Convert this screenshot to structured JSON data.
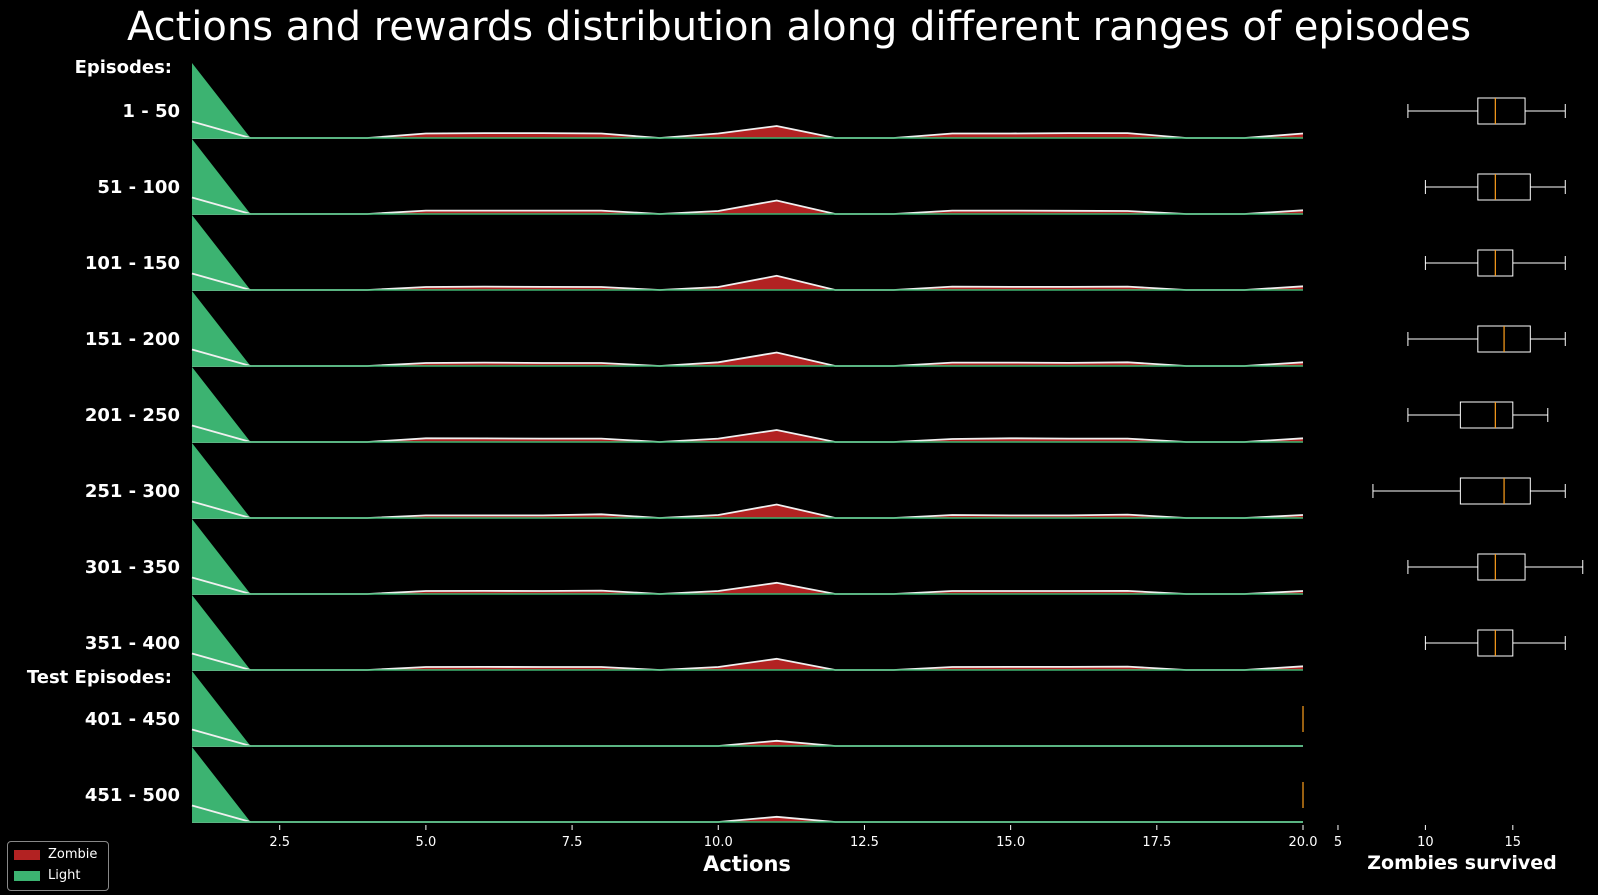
{
  "chart_data": {
    "type": "area",
    "title": "Actions and rewards distribution along different ranges of episodes",
    "group_labels": [
      "Episodes:",
      "Test Episodes:"
    ],
    "xlabel": "Actions",
    "xlim": [
      1,
      20
    ],
    "xticks": [
      "2.5",
      "5.0",
      "7.5",
      "10.0",
      "12.5",
      "15.0",
      "17.5",
      "20.0"
    ],
    "xtick_values": [
      2.5,
      5.0,
      7.5,
      10.0,
      12.5,
      15.0,
      17.5,
      20.0
    ],
    "box_xlabel": "Zombies survived",
    "box_xlim": [
      3,
      19.3
    ],
    "box_xticks": [
      "5",
      "10",
      "15"
    ],
    "box_xtick_values": [
      5,
      10,
      15
    ],
    "legend": [
      {
        "name": "Zombie",
        "color": "#b22222"
      },
      {
        "name": "Light",
        "color": "#3cb371"
      }
    ],
    "actions": [
      1,
      2,
      3,
      4,
      5,
      6,
      7,
      8,
      9,
      10,
      11,
      12,
      13,
      14,
      15,
      16,
      17,
      18,
      19,
      20
    ],
    "rows": [
      {
        "label": "1 - 50",
        "zombie": [
          0,
          0,
          0,
          0,
          0.06,
          0.065,
          0.065,
          0.06,
          0,
          0.06,
          0.16,
          0,
          0,
          0.06,
          0.06,
          0.065,
          0.065,
          0,
          0,
          0.06
        ],
        "light": [
          1,
          0,
          0,
          0,
          0,
          0,
          0,
          0,
          0,
          0,
          0,
          0,
          0,
          0,
          0,
          0,
          0,
          0,
          0,
          0
        ],
        "box": {
          "whislo": 9,
          "q1": 13,
          "med": 14,
          "q3": 15.7,
          "whishi": 18
        }
      },
      {
        "label": "51 - 100",
        "zombie": [
          0,
          0,
          0,
          0,
          0.045,
          0.045,
          0.045,
          0.045,
          0,
          0.04,
          0.18,
          0,
          0,
          0.045,
          0.045,
          0.042,
          0.04,
          0,
          0,
          0.05
        ],
        "light": [
          1,
          0,
          0,
          0,
          0,
          0,
          0,
          0,
          0,
          0,
          0,
          0,
          0,
          0,
          0,
          0,
          0,
          0,
          0,
          0
        ],
        "box": {
          "whislo": 10,
          "q1": 13,
          "med": 14,
          "q3": 16,
          "whishi": 18
        }
      },
      {
        "label": "101 - 150",
        "zombie": [
          0,
          0,
          0,
          0,
          0.04,
          0.045,
          0.042,
          0.04,
          0,
          0.04,
          0.19,
          0,
          0,
          0.045,
          0.042,
          0.042,
          0.045,
          0,
          0,
          0.05
        ],
        "light": [
          1,
          0,
          0,
          0,
          0,
          0,
          0,
          0,
          0,
          0,
          0,
          0,
          0,
          0,
          0,
          0,
          0,
          0,
          0,
          0
        ],
        "box": {
          "whislo": 10,
          "q1": 13,
          "med": 14,
          "q3": 15,
          "whishi": 18
        }
      },
      {
        "label": "151 - 200",
        "zombie": [
          0,
          0,
          0,
          0,
          0.04,
          0.045,
          0.04,
          0.04,
          0,
          0.05,
          0.18,
          0,
          0,
          0.045,
          0.045,
          0.042,
          0.05,
          0,
          0,
          0.05
        ],
        "light": [
          1,
          0,
          0,
          0,
          0,
          0,
          0,
          0,
          0,
          0,
          0,
          0,
          0,
          0,
          0,
          0,
          0,
          0,
          0,
          0
        ],
        "box": {
          "whislo": 9,
          "q1": 13,
          "med": 14.5,
          "q3": 16,
          "whishi": 18
        }
      },
      {
        "label": "201 - 250",
        "zombie": [
          0,
          0,
          0,
          0,
          0.05,
          0.048,
          0.045,
          0.045,
          0,
          0.045,
          0.16,
          0,
          0,
          0.04,
          0.05,
          0.045,
          0.045,
          0,
          0,
          0.05
        ],
        "light": [
          1,
          0,
          0,
          0,
          0,
          0,
          0,
          0,
          0,
          0,
          0,
          0,
          0,
          0,
          0,
          0,
          0,
          0,
          0,
          0
        ],
        "box": {
          "whislo": 9,
          "q1": 12,
          "med": 14,
          "q3": 15,
          "whishi": 17
        }
      },
      {
        "label": "251 - 300",
        "zombie": [
          0,
          0,
          0,
          0,
          0.035,
          0.035,
          0.035,
          0.05,
          0,
          0.04,
          0.18,
          0,
          0,
          0.04,
          0.035,
          0.035,
          0.045,
          0,
          0,
          0.04
        ],
        "light": [
          1,
          0,
          0,
          0,
          0,
          0,
          0,
          0,
          0,
          0,
          0,
          0,
          0,
          0,
          0,
          0,
          0,
          0,
          0,
          0
        ],
        "box": {
          "whislo": 7,
          "q1": 12,
          "med": 14.5,
          "q3": 16,
          "whishi": 18
        }
      },
      {
        "label": "301 - 350",
        "zombie": [
          0,
          0,
          0,
          0,
          0.04,
          0.042,
          0.04,
          0.045,
          0,
          0.04,
          0.15,
          0,
          0,
          0.04,
          0.04,
          0.04,
          0.042,
          0,
          0,
          0.04
        ],
        "light": [
          1,
          0,
          0,
          0,
          0,
          0,
          0,
          0,
          0,
          0,
          0,
          0,
          0,
          0,
          0,
          0,
          0,
          0,
          0,
          0
        ],
        "box": {
          "whislo": 9,
          "q1": 13,
          "med": 14,
          "q3": 15.7,
          "whishi": 19
        }
      },
      {
        "label": "351 - 400",
        "zombie": [
          0,
          0,
          0,
          0,
          0.04,
          0.042,
          0.04,
          0.04,
          0,
          0.04,
          0.15,
          0,
          0,
          0.04,
          0.042,
          0.042,
          0.045,
          0,
          0,
          0.05
        ],
        "light": [
          1,
          0,
          0,
          0,
          0,
          0,
          0,
          0,
          0,
          0,
          0,
          0,
          0,
          0,
          0,
          0,
          0,
          0,
          0,
          0
        ],
        "box": {
          "whislo": 10,
          "q1": 13,
          "med": 14,
          "q3": 15,
          "whishi": 18
        }
      },
      {
        "label": "401 - 450",
        "zombie": [
          0,
          0,
          0,
          0,
          0,
          0,
          0,
          0,
          0,
          0,
          0.07,
          0,
          0,
          0,
          0,
          0,
          0,
          0,
          0,
          0
        ],
        "light": [
          1,
          0,
          0,
          0,
          0,
          0,
          0,
          0,
          0,
          0,
          0,
          0,
          0,
          0,
          0,
          0,
          0,
          0,
          0,
          0
        ],
        "box": {
          "whislo": 3,
          "q1": 3,
          "med": 3,
          "q3": 3,
          "whishi": 3
        }
      },
      {
        "label": "451 - 500",
        "zombie": [
          0,
          0,
          0,
          0,
          0,
          0,
          0,
          0,
          0,
          0,
          0.07,
          0,
          0,
          0,
          0,
          0,
          0,
          0,
          0,
          0
        ],
        "light": [
          1,
          0,
          0,
          0,
          0,
          0,
          0,
          0,
          0,
          0,
          0,
          0,
          0,
          0,
          0,
          0,
          0,
          0,
          0,
          0
        ],
        "box": {
          "whislo": 3,
          "q1": 3,
          "med": 3,
          "q3": 3,
          "whishi": 3
        }
      }
    ]
  }
}
